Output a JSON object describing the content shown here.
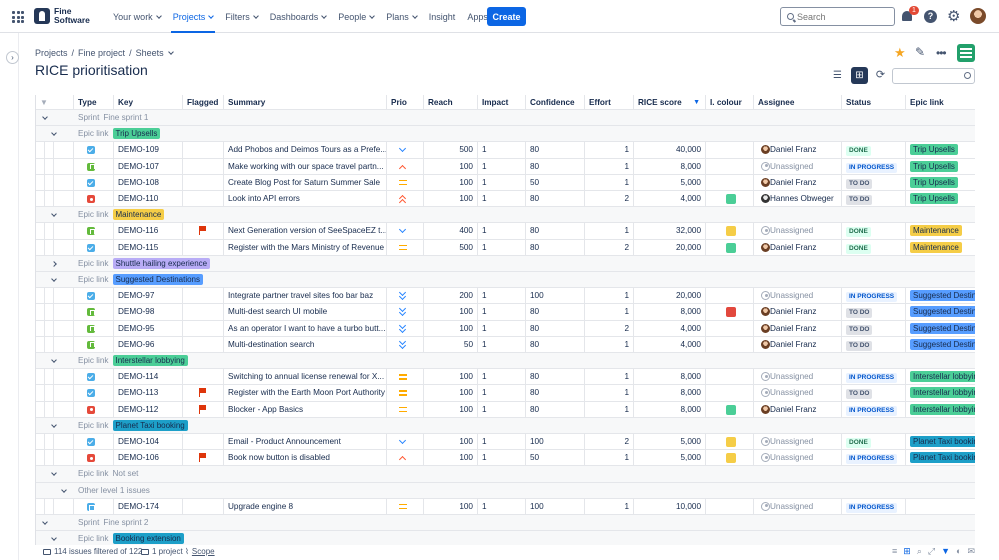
{
  "nav": {
    "brand_line1": "Fine",
    "brand_line2": "Software",
    "items": [
      {
        "label": "Your work",
        "active": false,
        "caret": true
      },
      {
        "label": "Projects",
        "active": true,
        "caret": true
      },
      {
        "label": "Filters",
        "active": false,
        "caret": true
      },
      {
        "label": "Dashboards",
        "active": false,
        "caret": true
      },
      {
        "label": "People",
        "active": false,
        "caret": true
      },
      {
        "label": "Plans",
        "active": false,
        "caret": true
      },
      {
        "label": "Insight",
        "active": false,
        "caret": false
      },
      {
        "label": "Apps",
        "active": false,
        "caret": true
      }
    ],
    "create_label": "Create",
    "search_placeholder": "Search",
    "notification_count": "1",
    "help_glyph": "?"
  },
  "breadcrumb": [
    "Projects",
    "Fine project",
    "Sheets"
  ],
  "page_title": "RICE prioritisation",
  "columns": [
    "Type",
    "Key",
    "Flagged",
    "Summary",
    "Prio",
    "Reach",
    "Impact",
    "Confidence",
    "Effort",
    "RICE score",
    "I. colour",
    "Assignee",
    "Status",
    "Epic link"
  ],
  "group_labels": {
    "sprint": "Sprint",
    "epic": "Epic link",
    "other": "Other level 1 issues"
  },
  "rows": [
    {
      "kind": "sprint",
      "value": "Fine sprint 1",
      "toggle": "down"
    },
    {
      "kind": "epic",
      "value": "Trip Upsells",
      "color": "#4bce97",
      "toggle": "down"
    },
    {
      "kind": "issue",
      "type": "task",
      "key": "DEMO-109",
      "flag": false,
      "summary": "Add Phobos and Deimos Tours as a Prefe...",
      "prio": "low",
      "reach": "500",
      "impact": "1",
      "conf": "80",
      "effort": "1",
      "rice": "40,000",
      "colour": "",
      "assignee": "Daniel Franz",
      "av": "person",
      "status": "DONE",
      "st": "done",
      "epic": "Trip Upsells",
      "epicColor": "#4bce97"
    },
    {
      "kind": "issue",
      "type": "story",
      "key": "DEMO-107",
      "flag": false,
      "summary": "Make working with our space travel partn...",
      "prio": "high",
      "reach": "100",
      "impact": "1",
      "conf": "80",
      "effort": "1",
      "rice": "8,000",
      "colour": "",
      "assignee": "Unassigned",
      "av": "none",
      "status": "IN PROGRESS",
      "st": "prog",
      "epic": "Trip Upsells",
      "epicColor": "#4bce97"
    },
    {
      "kind": "issue",
      "type": "task",
      "key": "DEMO-108",
      "flag": false,
      "summary": "Create Blog Post for Saturn Summer Sale",
      "prio": "medium",
      "reach": "100",
      "impact": "1",
      "conf": "50",
      "effort": "1",
      "rice": "5,000",
      "colour": "",
      "assignee": "Daniel Franz",
      "av": "person",
      "status": "TO DO",
      "st": "todo",
      "epic": "Trip Upsells",
      "epicColor": "#4bce97"
    },
    {
      "kind": "issue",
      "type": "bug",
      "key": "DEMO-110",
      "flag": false,
      "summary": "Look into API errors",
      "prio": "highest",
      "reach": "100",
      "impact": "1",
      "conf": "80",
      "effort": "2",
      "rice": "4,000",
      "colour": "#4bce97",
      "assignee": "Hannes Obweger",
      "av": "person2",
      "status": "TO DO",
      "st": "todo",
      "epic": "Trip Upsells",
      "epicColor": "#4bce97"
    },
    {
      "kind": "epic",
      "value": "Maintenance",
      "color": "#f5cd47",
      "toggle": "down"
    },
    {
      "kind": "issue",
      "type": "story",
      "key": "DEMO-116",
      "flag": true,
      "summary": "Next Generation version of SeeSpaceEZ t...",
      "prio": "low",
      "reach": "400",
      "impact": "1",
      "conf": "80",
      "effort": "1",
      "rice": "32,000",
      "colour": "#f5cd47",
      "assignee": "Unassigned",
      "av": "none",
      "status": "DONE",
      "st": "done",
      "epic": "Maintenance",
      "epicColor": "#f5cd47"
    },
    {
      "kind": "issue",
      "type": "task",
      "key": "DEMO-115",
      "flag": false,
      "summary": "Register with the Mars Ministry of Revenue",
      "prio": "medium",
      "reach": "500",
      "impact": "1",
      "conf": "80",
      "effort": "2",
      "rice": "20,000",
      "colour": "#4bce97",
      "assignee": "Daniel Franz",
      "av": "person",
      "status": "DONE",
      "st": "done",
      "epic": "Maintenance",
      "epicColor": "#f5cd47"
    },
    {
      "kind": "epic",
      "value": "Shuttle hailing experience",
      "color": "#b8acf6",
      "toggle": "right"
    },
    {
      "kind": "epic",
      "value": "Suggested Destinations",
      "color": "#579dff",
      "toggle": "down"
    },
    {
      "kind": "issue",
      "type": "task",
      "key": "DEMO-97",
      "flag": false,
      "summary": "Integrate partner travel sites foo bar baz",
      "prio": "lowest",
      "reach": "200",
      "impact": "1",
      "conf": "100",
      "effort": "1",
      "rice": "20,000",
      "colour": "",
      "assignee": "Unassigned",
      "av": "none",
      "status": "IN PROGRESS",
      "st": "prog",
      "epic": "Suggested Destinations",
      "epicColor": "#579dff"
    },
    {
      "kind": "issue",
      "type": "story",
      "key": "DEMO-98",
      "flag": false,
      "summary": "Multi-dest search UI mobile",
      "prio": "lowest",
      "reach": "100",
      "impact": "1",
      "conf": "80",
      "effort": "1",
      "rice": "8,000",
      "colour": "#e2483d",
      "assignee": "Daniel Franz",
      "av": "person",
      "status": "TO DO",
      "st": "todo",
      "epic": "Suggested Destinations",
      "epicColor": "#579dff"
    },
    {
      "kind": "issue",
      "type": "story",
      "key": "DEMO-95",
      "flag": false,
      "summary": "As an operator I want to have a turbo butt...",
      "prio": "lowest",
      "reach": "100",
      "impact": "1",
      "conf": "80",
      "effort": "2",
      "rice": "4,000",
      "colour": "",
      "assignee": "Daniel Franz",
      "av": "person",
      "status": "TO DO",
      "st": "todo",
      "epic": "Suggested Destinations",
      "epicColor": "#579dff"
    },
    {
      "kind": "issue",
      "type": "story",
      "key": "DEMO-96",
      "flag": false,
      "summary": "Multi-destination search",
      "prio": "lowest",
      "reach": "50",
      "impact": "1",
      "conf": "80",
      "effort": "1",
      "rice": "4,000",
      "colour": "",
      "assignee": "Daniel Franz",
      "av": "person",
      "status": "TO DO",
      "st": "todo",
      "epic": "Suggested Destinations",
      "epicColor": "#579dff"
    },
    {
      "kind": "epic",
      "value": "Interstellar lobbying",
      "color": "#4bce97",
      "toggle": "down"
    },
    {
      "kind": "issue",
      "type": "task",
      "key": "DEMO-114",
      "flag": false,
      "summary": "Switching to annual license renewal for X...",
      "prio": "medium",
      "reach": "100",
      "impact": "1",
      "conf": "80",
      "effort": "1",
      "rice": "8,000",
      "colour": "",
      "assignee": "Unassigned",
      "av": "none",
      "status": "IN PROGRESS",
      "st": "prog",
      "epic": "Interstellar lobbying",
      "epicColor": "#4bce97"
    },
    {
      "kind": "issue",
      "type": "task",
      "key": "DEMO-113",
      "flag": true,
      "summary": "Register with the Earth Moon Port Authority",
      "prio": "medium",
      "reach": "100",
      "impact": "1",
      "conf": "80",
      "effort": "1",
      "rice": "8,000",
      "colour": "",
      "assignee": "Unassigned",
      "av": "none",
      "status": "TO DO",
      "st": "todo",
      "epic": "Interstellar lobbying",
      "epicColor": "#4bce97"
    },
    {
      "kind": "issue",
      "type": "bug",
      "key": "DEMO-112",
      "flag": true,
      "summary": "Blocker - App Basics",
      "prio": "medium",
      "reach": "100",
      "impact": "1",
      "conf": "80",
      "effort": "1",
      "rice": "8,000",
      "colour": "#4bce97",
      "assignee": "Daniel Franz",
      "av": "person",
      "status": "IN PROGRESS",
      "st": "prog",
      "epic": "Interstellar lobbying",
      "epicColor": "#4bce97"
    },
    {
      "kind": "epic",
      "value": "Planet Taxi booking",
      "color": "#1d9fc8",
      "toggle": "down"
    },
    {
      "kind": "issue",
      "type": "task",
      "key": "DEMO-104",
      "flag": false,
      "summary": "Email - Product Announcement",
      "prio": "low",
      "reach": "100",
      "impact": "1",
      "conf": "100",
      "effort": "2",
      "rice": "5,000",
      "colour": "#f5cd47",
      "assignee": "Unassigned",
      "av": "none",
      "status": "DONE",
      "st": "done",
      "epic": "Planet Taxi booking",
      "epicColor": "#1d9fc8"
    },
    {
      "kind": "issue",
      "type": "bug",
      "key": "DEMO-106",
      "flag": true,
      "summary": "Book now button is disabled",
      "prio": "high",
      "reach": "100",
      "impact": "1",
      "conf": "50",
      "effort": "1",
      "rice": "5,000",
      "colour": "#f5cd47",
      "assignee": "Unassigned",
      "av": "none",
      "status": "IN PROGRESS",
      "st": "prog",
      "epic": "Planet Taxi booking",
      "epicColor": "#1d9fc8"
    },
    {
      "kind": "epic",
      "value": "Not set",
      "color": "",
      "toggle": "down"
    },
    {
      "kind": "other",
      "value": "",
      "toggle": "down"
    },
    {
      "kind": "issue",
      "type": "sub",
      "key": "DEMO-174",
      "flag": false,
      "summary": "Upgrade engine 8",
      "prio": "medium",
      "reach": "100",
      "impact": "1",
      "conf": "100",
      "effort": "1",
      "rice": "10,000",
      "colour": "",
      "assignee": "Unassigned",
      "av": "none",
      "status": "IN PROGRESS",
      "st": "prog",
      "epic": "",
      "epicColor": ""
    },
    {
      "kind": "sprint",
      "value": "Fine sprint 2",
      "toggle": "down"
    },
    {
      "kind": "epic",
      "value": "Booking extension",
      "color": "#1d9fc8",
      "toggle": "down"
    }
  ],
  "statusbar": {
    "filtered": "114 issues filtered of 122",
    "projects": "1 project",
    "scope": "Scope"
  }
}
